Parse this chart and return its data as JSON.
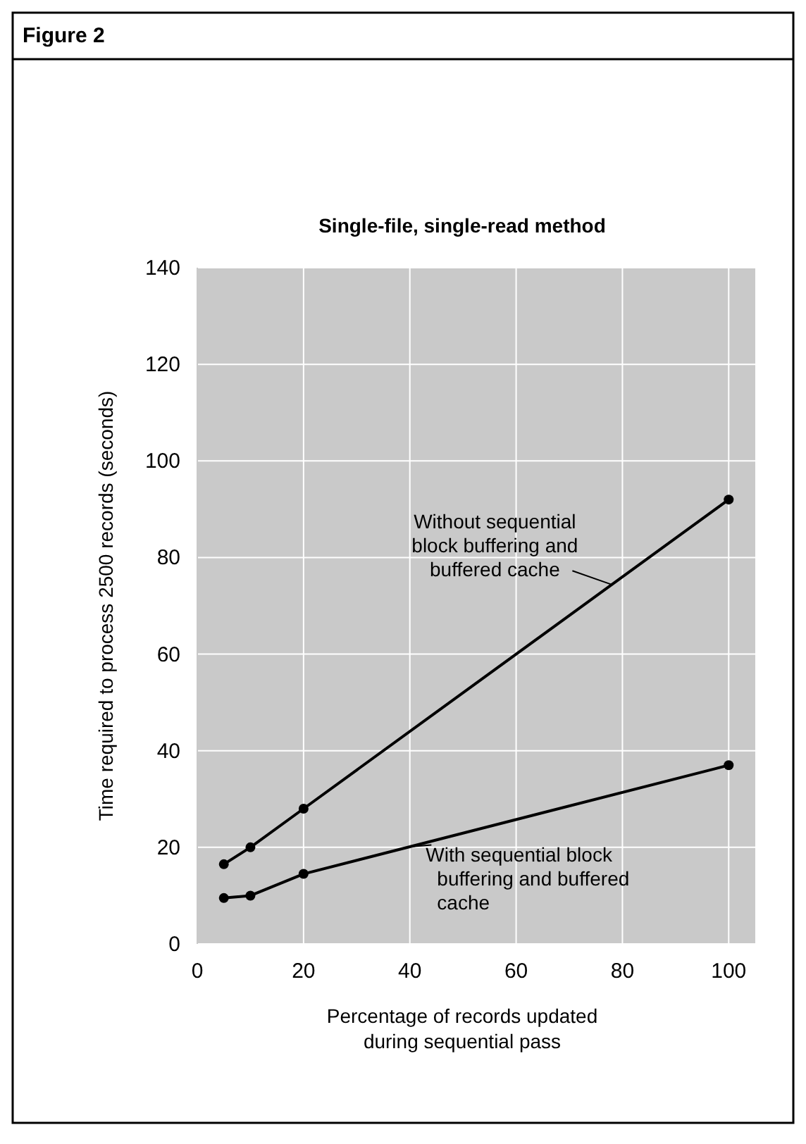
{
  "chart_data": {
    "type": "line",
    "title": "Single-file, single-read method",
    "xlabel": "Percentage of records updated during sequential pass",
    "ylabel": "Time required to process 2500 records (seconds)",
    "annotations": [
      "Figure 2"
    ],
    "xlim": [
      0,
      105
    ],
    "ylim": [
      0,
      140
    ],
    "xticks": [
      0,
      20,
      40,
      60,
      80,
      100
    ],
    "yticks": [
      0,
      20,
      40,
      60,
      80,
      100,
      120,
      140
    ],
    "grid": true,
    "marker": "circle",
    "line_style": "solid",
    "series": [
      {
        "name": "Without sequential block buffering and buffered cache",
        "color": "#000000",
        "x": [
          5,
          10,
          20,
          100
        ],
        "values": [
          16.5,
          20,
          28,
          92
        ]
      },
      {
        "name": "With sequential block buffering and buffered cache",
        "color": "#000000",
        "x": [
          5,
          10,
          20,
          100
        ],
        "values": [
          9.5,
          10,
          14.5,
          37
        ]
      }
    ]
  }
}
